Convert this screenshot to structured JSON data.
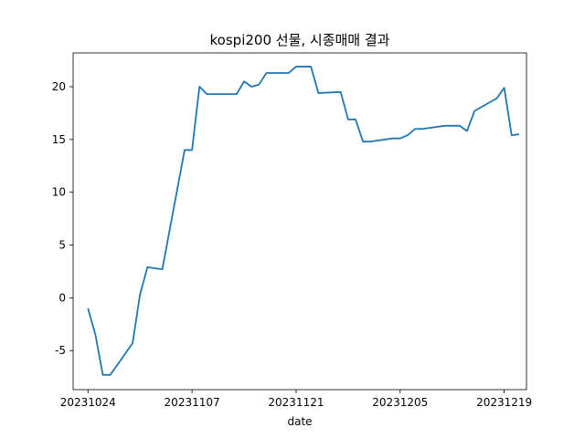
{
  "chart_data": {
    "type": "line",
    "title": "kospi200 선물, 시종매매 결과",
    "xlabel": "date",
    "ylabel": "",
    "xlim": [
      "20231022",
      "20231222"
    ],
    "ylim": [
      -8.7,
      23.2
    ],
    "x_ticks": [
      "20231024",
      "20231107",
      "20231121",
      "20231205",
      "20231219"
    ],
    "y_ticks": [
      -5,
      0,
      5,
      10,
      15,
      20
    ],
    "y_tick_labels": [
      "-5",
      "0",
      "5",
      "10",
      "15",
      "20"
    ],
    "grid": false,
    "legend": "none",
    "series": [
      {
        "color": "#1f77b4",
        "x": [
          "20231024",
          "20231025",
          "20231026",
          "20231027",
          "20231030",
          "20231031",
          "20231101",
          "20231102",
          "20231103",
          "20231106",
          "20231107",
          "20231108",
          "20231109",
          "20231110",
          "20231113",
          "20231114",
          "20231115",
          "20231116",
          "20231117",
          "20231120",
          "20231121",
          "20231122",
          "20231123",
          "20231124",
          "20231127",
          "20231128",
          "20231129",
          "20231130",
          "20231201",
          "20231204",
          "20231205",
          "20231206",
          "20231207",
          "20231208",
          "20231211",
          "20231212",
          "20231213",
          "20231214",
          "20231215",
          "20231218",
          "20231219",
          "20231220",
          "20231221"
        ],
        "values": [
          -1.0,
          -3.5,
          -7.3,
          -7.3,
          -4.3,
          0.3,
          2.9,
          2.8,
          2.7,
          14.0,
          14.0,
          20.0,
          19.3,
          19.3,
          19.3,
          20.5,
          20.0,
          20.2,
          21.3,
          21.3,
          21.9,
          21.9,
          21.9,
          19.4,
          19.5,
          16.9,
          16.9,
          14.8,
          14.8,
          15.1,
          15.1,
          15.4,
          16.0,
          16.0,
          16.3,
          16.3,
          16.3,
          15.8,
          17.7,
          18.9,
          19.9,
          15.4,
          15.5
        ]
      }
    ]
  }
}
